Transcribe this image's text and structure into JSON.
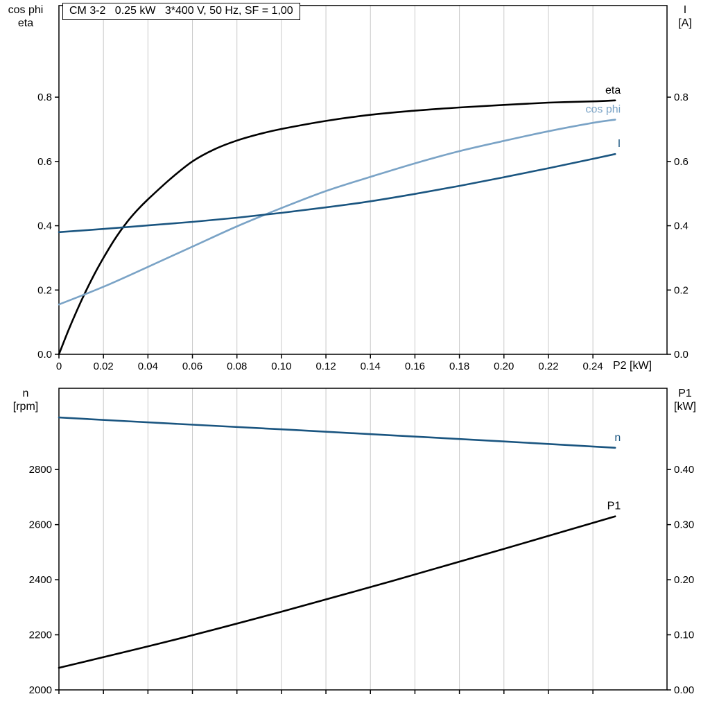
{
  "title": "CM 3-2   0.25 kW   3*400 V, 50 Hz, SF = 1,00",
  "colors": {
    "black": "#000000",
    "dark_blue": "#1a5580",
    "light_blue": "#7aa3c6",
    "grid": "#c8c8c8",
    "frame": "#000000"
  },
  "axis_labels": {
    "top_left": [
      "cos phi",
      "eta"
    ],
    "top_right": [
      "I",
      "[A]"
    ],
    "x_right": "P2 [kW]",
    "bottom_left": [
      "n",
      "[rpm]"
    ],
    "bottom_right": [
      "P1",
      "[kW]"
    ]
  },
  "chart_data": [
    {
      "type": "line",
      "panel": "top",
      "title": "CM 3-2   0.25 kW   3*400 V, 50 Hz, SF = 1,00",
      "xlabel": "P2 [kW]",
      "ylabel_left": "cos phi / eta",
      "ylabel_right": "I [A]",
      "grid": "vertical",
      "legend_position": "end-of-line-labels",
      "xlim": [
        0,
        0.2733
      ],
      "xticks": [
        0,
        0.02,
        0.04,
        0.06,
        0.08,
        0.1,
        0.12,
        0.14,
        0.16,
        0.18,
        0.2,
        0.22,
        0.24
      ],
      "xtick_labels": [
        "0",
        "0.02",
        "0.04",
        "0.06",
        "0.08",
        "0.10",
        "0.12",
        "0.14",
        "0.16",
        "0.18",
        "0.20",
        "0.22",
        "0.24"
      ],
      "ylim_left": [
        0,
        1.085
      ],
      "yticks_left": [
        0,
        0.2,
        0.4,
        0.6,
        0.8
      ],
      "ytick_labels_left": [
        "0.0",
        "0.2",
        "0.4",
        "0.6",
        "0.8"
      ],
      "ylim_right": [
        0,
        1.085
      ],
      "yticks_right": [
        0,
        0.2,
        0.4,
        0.6,
        0.8
      ],
      "ytick_labels_right": [
        "0.0",
        "0.2",
        "0.4",
        "0.6",
        "0.8"
      ],
      "series": [
        {
          "name": "eta",
          "axis": "left",
          "color": "black",
          "x": [
            0,
            0.004,
            0.008,
            0.012,
            0.016,
            0.02,
            0.025,
            0.03,
            0.035,
            0.04,
            0.05,
            0.06,
            0.07,
            0.08,
            0.09,
            0.1,
            0.12,
            0.14,
            0.16,
            0.18,
            0.2,
            0.22,
            0.24,
            0.25
          ],
          "y": [
            0,
            0.07,
            0.135,
            0.195,
            0.25,
            0.3,
            0.357,
            0.406,
            0.447,
            0.482,
            0.545,
            0.6,
            0.638,
            0.665,
            0.685,
            0.701,
            0.726,
            0.745,
            0.758,
            0.768,
            0.776,
            0.783,
            0.787,
            0.79
          ]
        },
        {
          "name": "cos phi",
          "axis": "left",
          "color": "light_blue",
          "x": [
            0,
            0.02,
            0.04,
            0.06,
            0.08,
            0.1,
            0.12,
            0.14,
            0.16,
            0.18,
            0.2,
            0.22,
            0.24,
            0.25
          ],
          "y": [
            0.155,
            0.21,
            0.272,
            0.335,
            0.398,
            0.455,
            0.508,
            0.552,
            0.594,
            0.632,
            0.664,
            0.694,
            0.72,
            0.73
          ]
        },
        {
          "name": "I",
          "axis": "right",
          "color": "dark_blue",
          "x": [
            0,
            0.02,
            0.04,
            0.06,
            0.08,
            0.1,
            0.12,
            0.14,
            0.16,
            0.18,
            0.2,
            0.22,
            0.24,
            0.25
          ],
          "y": [
            0.38,
            0.39,
            0.401,
            0.412,
            0.425,
            0.44,
            0.457,
            0.476,
            0.499,
            0.524,
            0.551,
            0.579,
            0.608,
            0.623
          ]
        }
      ]
    },
    {
      "type": "line",
      "panel": "bottom",
      "xlabel": "P2 [kW]",
      "ylabel_left": "n [rpm]",
      "ylabel_right": "P1 [kW]",
      "grid": "vertical",
      "xlim": [
        0,
        0.2733
      ],
      "xticks": [
        0,
        0.02,
        0.04,
        0.06,
        0.08,
        0.1,
        0.12,
        0.14,
        0.16,
        0.18,
        0.2,
        0.22,
        0.24
      ],
      "xtick_labels": null,
      "ylim_left": [
        2000,
        3095
      ],
      "yticks_left": [
        2000,
        2200,
        2400,
        2600,
        2800
      ],
      "ytick_labels_left": [
        "2000",
        "2200",
        "2400",
        "2600",
        "2800"
      ],
      "ylim_right": [
        0,
        0.5475
      ],
      "yticks_right": [
        0,
        0.1,
        0.2,
        0.3,
        0.4
      ],
      "ytick_labels_right": [
        "0.00",
        "0.10",
        "0.20",
        "0.30",
        "0.40"
      ],
      "series": [
        {
          "name": "n",
          "axis": "left",
          "color": "dark_blue",
          "x": [
            0,
            0.05,
            0.1,
            0.15,
            0.2,
            0.25
          ],
          "y": [
            2989,
            2967,
            2946,
            2924,
            2902,
            2879
          ]
        },
        {
          "name": "P1",
          "axis": "right",
          "color": "black",
          "x": [
            0,
            0.05,
            0.1,
            0.15,
            0.2,
            0.25
          ],
          "y": [
            0.04,
            0.089,
            0.142,
            0.198,
            0.256,
            0.315
          ]
        }
      ]
    }
  ]
}
